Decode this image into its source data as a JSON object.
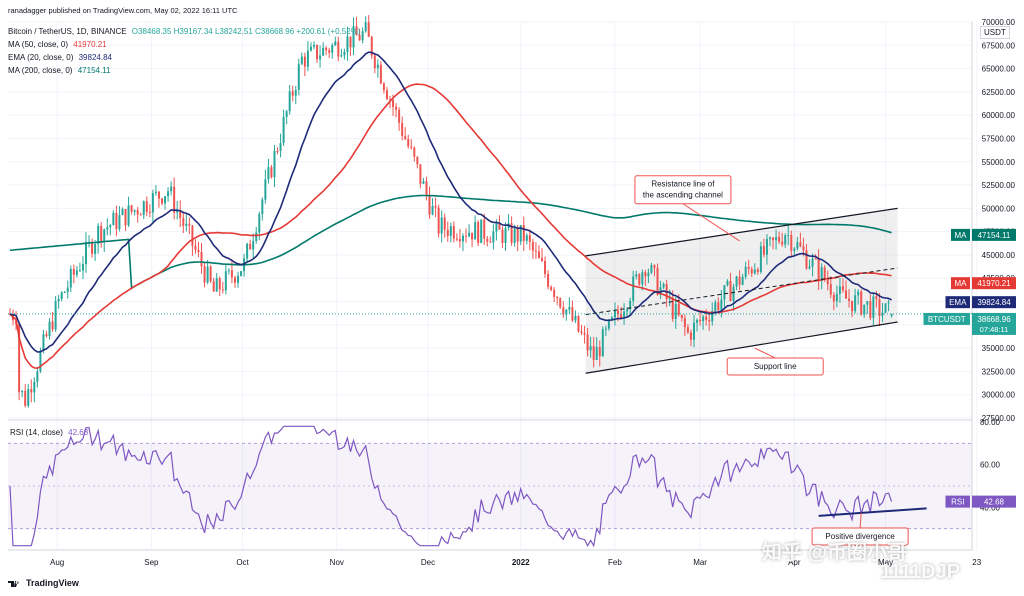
{
  "header": {
    "published": "ranadagger published on TradingView.com, May 02, 2022 16:11 UTC",
    "symbol": "Bitcoin / TetherUS, 1D, BINANCE",
    "ohlc": "O38468.35 H39167.34 L38242.51 C38668.96 +200.61 (+0.52%)",
    "ma50_label": "MA (50, close, 0)",
    "ma50_value": "41970.21",
    "ema20_label": "EMA (20, close, 0)",
    "ema20_value": "39824.84",
    "ma200_label": "MA (200, close, 0)",
    "ma200_value": "47154.11",
    "rsi_label": "RSI (14, close)",
    "rsi_value": "42.68"
  },
  "currency": "USDT",
  "badges": {
    "ma200": {
      "tag": "MA",
      "value": "47154.11"
    },
    "ma50": {
      "tag": "MA",
      "value": "41970.21"
    },
    "ema": {
      "tag": "EMA",
      "value": "39824.84"
    },
    "price": {
      "tag": "BTCUSDT",
      "value": "38668.96",
      "countdown": "07:48:11"
    },
    "rsi": {
      "tag": "RSI",
      "value": "42.68"
    }
  },
  "annotations": {
    "resistance": [
      "Resistance line of",
      "the ascending channel"
    ],
    "support": "Support line",
    "divergence": "Positive divergence"
  },
  "footer": "TradingView",
  "watermark": {
    "line1": "知乎 @币圈小哥",
    "line2": "1111DJP"
  },
  "colors": {
    "up": "#26a69a",
    "down": "#ef5350",
    "ema": "#1e2a78",
    "ma50": "#e53935",
    "ma200": "#00796b",
    "rsi": "#7e57c2",
    "price": "#26a69a",
    "channel": "#131722"
  },
  "chart_data": [
    {
      "type": "candlestick",
      "title": "Bitcoin / TetherUS, 1D, BINANCE",
      "ylim": [
        27500,
        70000
      ],
      "y_ticks": [
        "27500.00",
        "30000.00",
        "32500.00",
        "35000.00",
        "37500.00",
        "40000.00",
        "42500.00",
        "45000.00",
        "47500.00",
        "50000.00",
        "52500.00",
        "55000.00",
        "57500.00",
        "60000.00",
        "62500.00",
        "65000.00",
        "67500.00",
        "70000.00"
      ],
      "x_ticks": [
        "Aug",
        "Sep",
        "Oct",
        "Nov",
        "Dec",
        "2022",
        "Feb",
        "Mar",
        "Apr",
        "May",
        "23"
      ],
      "price_path_monthly": [
        {
          "t": "Jul 19",
          "close": 30500
        },
        {
          "t": "Jul 21",
          "close": 29500
        },
        {
          "t": "Aug 1",
          "close": 40000
        },
        {
          "t": "Aug 14",
          "close": 47500
        },
        {
          "t": "Sep 6",
          "close": 52000
        },
        {
          "t": "Sep 21",
          "close": 41000
        },
        {
          "t": "Oct 1",
          "close": 44000
        },
        {
          "t": "Oct 20",
          "close": 66000
        },
        {
          "t": "Nov 10",
          "close": 68800
        },
        {
          "t": "Dec 4",
          "close": 48000
        },
        {
          "t": "Jan 1",
          "close": 47000
        },
        {
          "t": "Jan 24",
          "close": 34000
        },
        {
          "t": "Feb 10",
          "close": 44000
        },
        {
          "t": "Feb 24",
          "close": 36500
        },
        {
          "t": "Mar 28",
          "close": 47500
        },
        {
          "t": "Apr 15",
          "close": 40500
        },
        {
          "t": "May 2",
          "close": 38669
        }
      ],
      "indicators": {
        "EMA 20": 39824.84,
        "MA 50": 41970.21,
        "MA 200": 47154.11
      },
      "annotations": [
        "Resistance line of the ascending channel",
        "Support line"
      ]
    },
    {
      "type": "line",
      "title": "RSI (14, close)",
      "ylim": [
        20,
        80
      ],
      "y_ticks": [
        "80.00",
        "60.00",
        "40.00"
      ],
      "last": 42.68,
      "annotations": [
        "Positive divergence"
      ]
    }
  ]
}
